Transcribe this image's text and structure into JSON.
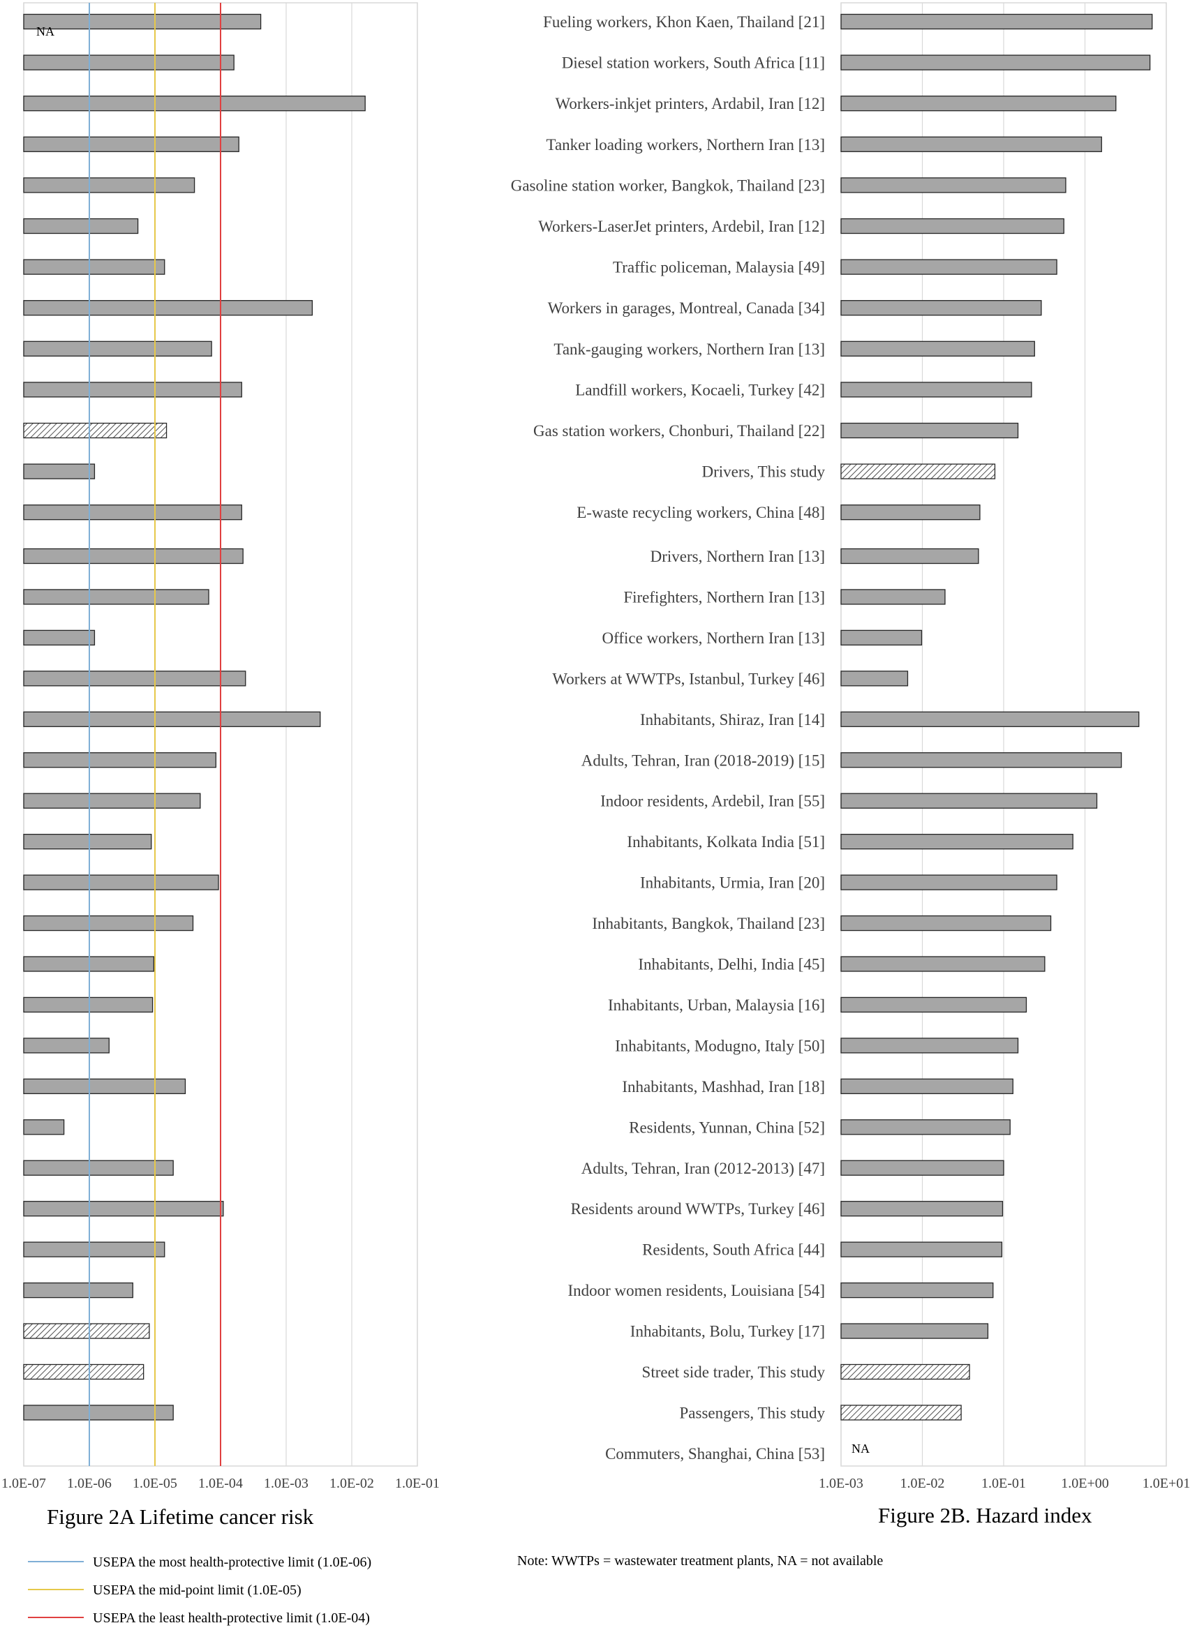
{
  "categories": [
    "Fueling workers, Khon Kaen, Thailand [21]",
    "Diesel station workers, South Africa [11]",
    "Workers-inkjet printers, Ardabil, Iran [12]",
    "Tanker loading workers, Northern Iran [13]",
    "Gasoline station worker, Bangkok, Thailand [23]",
    "Workers-LaserJet printers, Ardebil, Iran [12]",
    "Traffic policeman, Malaysia [49]",
    "Workers in garages, Montreal, Canada [34]",
    "Tank-gauging workers, Northern Iran [13]",
    "Landfill workers, Kocaeli, Turkey [42]",
    "Gas station workers, Chonburi, Thailand [22]",
    "Drivers, This study",
    "E-waste recycling workers, China [48]",
    "Drivers, Northern Iran [13]",
    "Firefighters, Northern Iran [13]",
    "Office workers, Northern Iran [13]",
    "Workers at WWTPs, Istanbul, Turkey [46]",
    "Inhabitants, Shiraz, Iran [14]",
    "Adults, Tehran, Iran (2018-2019) [15]",
    "Indoor residents, Ardebil, Iran [55]",
    "Inhabitants, Kolkata India [51]",
    "Inhabitants, Urmia, Iran [20]",
    "Inhabitants, Bangkok, Thailand [23]",
    "Inhabitants, Delhi, India [45]",
    "Inhabitants, Urban, Malaysia [16]",
    "Inhabitants, Modugno, Italy [50]",
    "Inhabitants, Mashhad, Iran [18]",
    "Residents, Yunnan, China [52]",
    "Adults, Tehran, Iran (2012-2013) [47]",
    "Residents around WWTPs, Turkey [46]",
    "Residents, South Africa [44]",
    "Indoor women residents, Louisiana  [54]",
    "Inhabitants, Bolu, Turkey [17]",
    "Street side trader, This study",
    "Passengers, This study",
    "Commuters, Shanghai, China [53]"
  ],
  "na_label": "NA",
  "note": "Note: WWTPs = wastewater treatment plants, NA = not available",
  "colors": {
    "bar_fill": "#a6a6a6",
    "bar_stroke": "#262626",
    "grid": "#d9d9d9",
    "line_low": "#7fafd6",
    "line_mid": "#e6c84a",
    "line_high": "#e04040"
  },
  "chart_data": [
    {
      "type": "bar",
      "orientation": "horizontal",
      "title": "Figure 2A Lifetime cancer risk",
      "x_scale": "log",
      "xlim": [
        1e-07,
        0.1
      ],
      "tick_labels": [
        "1.0E-07",
        "1.0E-06",
        "1.0E-05",
        "1.0E-04",
        "1.0E-03",
        "1.0E-02",
        "1.0E-01"
      ],
      "values": [
        0.00041,
        0.00016,
        0.016,
        0.00019,
        4e-05,
        5.5e-06,
        1.4e-05,
        0.0025,
        7.3e-05,
        0.00021,
        1.5e-05,
        1.2e-06,
        0.00021,
        0.00022,
        6.6e-05,
        1.2e-06,
        0.00024,
        0.0033,
        8.5e-05,
        4.9e-05,
        8.8e-06,
        9.3e-05,
        3.8e-05,
        9.6e-06,
        9.2e-06,
        2e-06,
        2.9e-05,
        4.1e-07,
        1.9e-05,
        0.00011,
        1.4e-05,
        4.6e-06,
        8.2e-06,
        6.7e-06,
        1.9e-05
      ],
      "patterned": [
        false,
        false,
        false,
        false,
        false,
        false,
        false,
        false,
        false,
        false,
        true,
        false,
        false,
        false,
        false,
        false,
        false,
        false,
        false,
        false,
        false,
        false,
        false,
        false,
        false,
        false,
        false,
        false,
        false,
        false,
        false,
        false,
        true,
        true,
        false
      ],
      "reference_lines": [
        {
          "value": 1e-06,
          "label": "USEPA the most health-protective limit (1.0E-06)",
          "color": "#7fafd6"
        },
        {
          "value": 1e-05,
          "label": "USEPA the mid-point limit (1.0E-05)",
          "color": "#e6c84a"
        },
        {
          "value": 0.0001,
          "label": "USEPA the least health-protective limit (1.0E-04)",
          "color": "#e04040"
        }
      ]
    },
    {
      "type": "bar",
      "orientation": "horizontal",
      "title": "Figure 2B. Hazard index",
      "x_scale": "log",
      "xlim": [
        0.001,
        10
      ],
      "tick_labels": [
        "1.0E-03",
        "1.0E-02",
        "1.0E-01",
        "1.0E+00",
        "1.0E+01"
      ],
      "values": [
        6.7,
        6.3,
        2.4,
        1.6,
        0.58,
        0.55,
        0.45,
        0.29,
        0.24,
        0.22,
        0.15,
        0.078,
        0.051,
        0.049,
        0.019,
        0.0098,
        0.0066,
        4.6,
        2.8,
        1.4,
        0.71,
        0.45,
        0.38,
        0.32,
        0.19,
        0.15,
        0.13,
        0.12,
        0.1,
        0.097,
        0.095,
        0.074,
        0.064,
        0.038,
        0.03
      ],
      "patterned": [
        false,
        false,
        false,
        false,
        false,
        false,
        false,
        false,
        false,
        false,
        false,
        true,
        false,
        false,
        false,
        false,
        false,
        false,
        false,
        false,
        false,
        false,
        false,
        false,
        false,
        false,
        false,
        false,
        false,
        false,
        false,
        false,
        false,
        true,
        true
      ]
    }
  ]
}
